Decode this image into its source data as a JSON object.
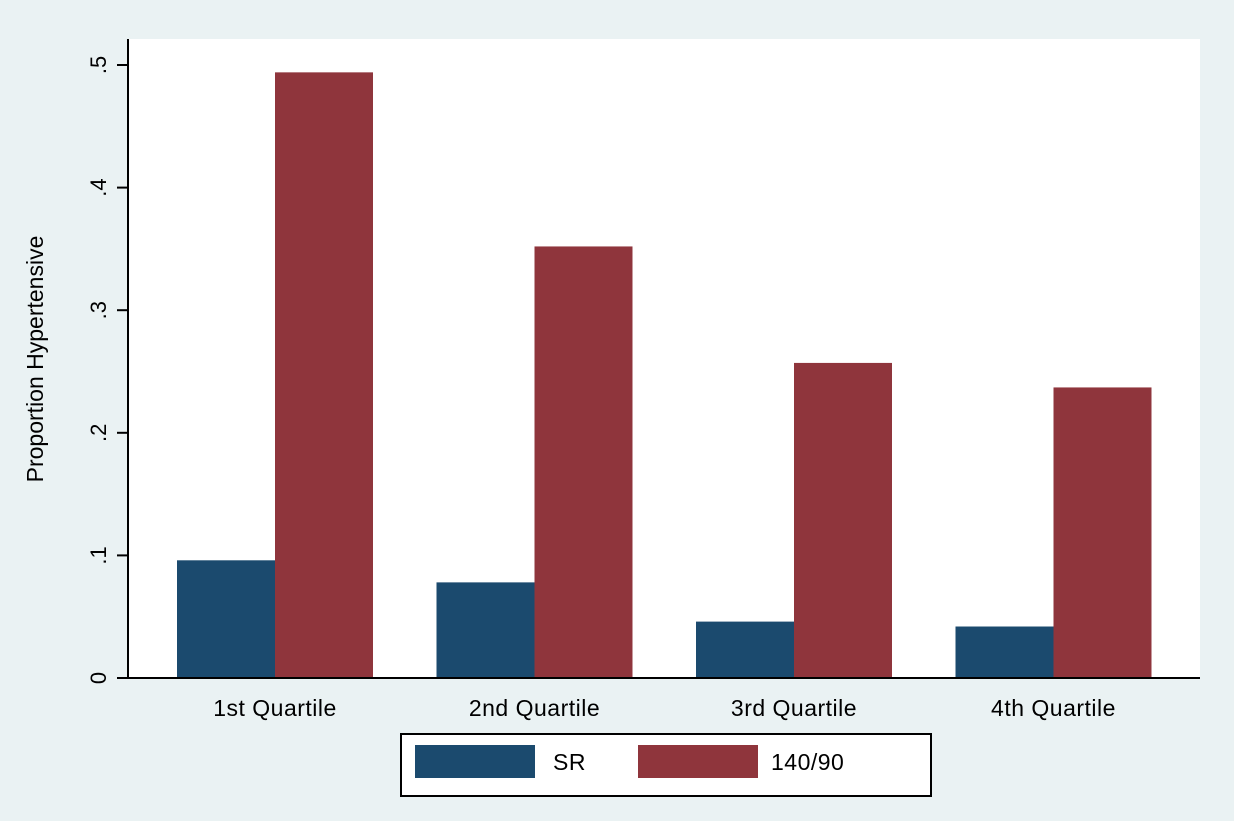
{
  "colors": {
    "outer_background": "#eaf2f3",
    "plot_background": "#ffffff",
    "axis": "#000000"
  },
  "chart_data": {
    "type": "bar",
    "ylabel": "Proportion Hypertensive",
    "xlabel": "",
    "ylim": [
      0,
      0.5
    ],
    "yticks": [
      0,
      0.1,
      0.2,
      0.3,
      0.4,
      0.5
    ],
    "ytick_labels": [
      "0",
      ".1",
      ".2",
      ".3",
      ".4",
      ".5"
    ],
    "categories": [
      "1st Quartile",
      "2nd Quartile",
      "3rd Quartile",
      "4th Quartile"
    ],
    "series": [
      {
        "name": "SR",
        "color": "#1b4a6e",
        "values": [
          0.096,
          0.078,
          0.046,
          0.042
        ]
      },
      {
        "name": "140/90",
        "color": "#8f353c",
        "values": [
          0.494,
          0.352,
          0.257,
          0.237
        ]
      }
    ],
    "grid": false,
    "legend_position": "bottom"
  }
}
